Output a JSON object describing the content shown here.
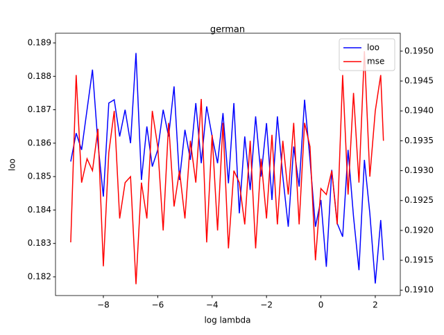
{
  "chart_data": {
    "type": "line",
    "title": "german",
    "xlabel": "log lambda",
    "ylabel": "loo",
    "x": [
      -9.2,
      -9.0,
      -8.8,
      -8.6,
      -8.4,
      -8.2,
      -8.0,
      -7.8,
      -7.6,
      -7.4,
      -7.2,
      -7.0,
      -6.8,
      -6.6,
      -6.4,
      -6.2,
      -6.0,
      -5.8,
      -5.6,
      -5.4,
      -5.2,
      -5.0,
      -4.8,
      -4.6,
      -4.4,
      -4.2,
      -4.0,
      -3.8,
      -3.6,
      -3.4,
      -3.2,
      -3.0,
      -2.8,
      -2.6,
      -2.4,
      -2.2,
      -2.0,
      -1.8,
      -1.6,
      -1.4,
      -1.2,
      -1.0,
      -0.8,
      -0.6,
      -0.4,
      -0.2,
      0.0,
      0.2,
      0.4,
      0.6,
      0.8,
      1.0,
      1.2,
      1.4,
      1.6,
      1.8,
      2.0,
      2.2,
      2.3
    ],
    "series": [
      {
        "name": "loo",
        "color": "#0000ff",
        "axis": "y",
        "values": [
          0.18545,
          0.1863,
          0.1858,
          0.187,
          0.1882,
          0.186,
          0.1844,
          0.1872,
          0.1873,
          0.1862,
          0.187,
          0.186,
          0.1887,
          0.1849,
          0.1865,
          0.1853,
          0.1858,
          0.187,
          0.1862,
          0.1877,
          0.1849,
          0.1864,
          0.1855,
          0.1872,
          0.1854,
          0.1871,
          0.1862,
          0.1854,
          0.1869,
          0.1848,
          0.1872,
          0.1839,
          0.1862,
          0.1846,
          0.1868,
          0.185,
          0.1866,
          0.1843,
          0.1868,
          0.185,
          0.1835,
          0.1859,
          0.1847,
          0.1873,
          0.1855,
          0.1835,
          0.1843,
          0.1823,
          0.1852,
          0.1836,
          0.1832,
          0.1858,
          0.1838,
          0.1822,
          0.1855,
          0.1839,
          0.1818,
          0.1837,
          0.1825
        ]
      },
      {
        "name": "mse",
        "color": "#ff0000",
        "axis": "y2",
        "values": [
          0.1918,
          0.1946,
          0.1928,
          0.1932,
          0.193,
          0.1937,
          0.1914,
          0.1933,
          0.194,
          0.1922,
          0.1928,
          0.1929,
          0.1911,
          0.1928,
          0.1922,
          0.194,
          0.1934,
          0.192,
          0.1938,
          0.1924,
          0.193,
          0.1922,
          0.1935,
          0.1928,
          0.1942,
          0.1918,
          0.1936,
          0.192,
          0.1938,
          0.1917,
          0.193,
          0.1928,
          0.1921,
          0.1935,
          0.1917,
          0.1932,
          0.1922,
          0.1936,
          0.1921,
          0.1935,
          0.1926,
          0.1938,
          0.1921,
          0.1938,
          0.1934,
          0.1915,
          0.1927,
          0.1926,
          0.193,
          0.1921,
          0.1946,
          0.1926,
          0.1943,
          0.1928,
          0.195,
          0.1929,
          0.194,
          0.1946,
          0.1935
        ]
      }
    ],
    "xlim": [
      -9.76,
      2.92
    ],
    "xticks": [
      {
        "value": -8,
        "label": "−8"
      },
      {
        "value": -6,
        "label": "−6"
      },
      {
        "value": -4,
        "label": "−4"
      },
      {
        "value": -2,
        "label": "−2"
      },
      0,
      2
    ],
    "ylim": [
      0.18144,
      0.18929
    ],
    "yticks": [
      0.182,
      0.183,
      0.184,
      0.185,
      0.186,
      0.187,
      0.188,
      0.189
    ],
    "y2lim": [
      0.19091,
      0.1953
    ],
    "y2ticks": [
      {
        "value": 0.191,
        "label": "0.1910"
      },
      {
        "value": 0.1915,
        "label": "0.1915"
      },
      {
        "value": 0.192,
        "label": "0.1920"
      },
      {
        "value": 0.1925,
        "label": "0.1925"
      },
      {
        "value": 0.193,
        "label": "0.1930"
      },
      {
        "value": 0.1935,
        "label": "0.1935"
      },
      {
        "value": 0.194,
        "label": "0.1940"
      },
      {
        "value": 0.1945,
        "label": "0.1945"
      },
      {
        "value": 0.195,
        "label": "0.1950"
      }
    ],
    "legend": "upper right"
  }
}
